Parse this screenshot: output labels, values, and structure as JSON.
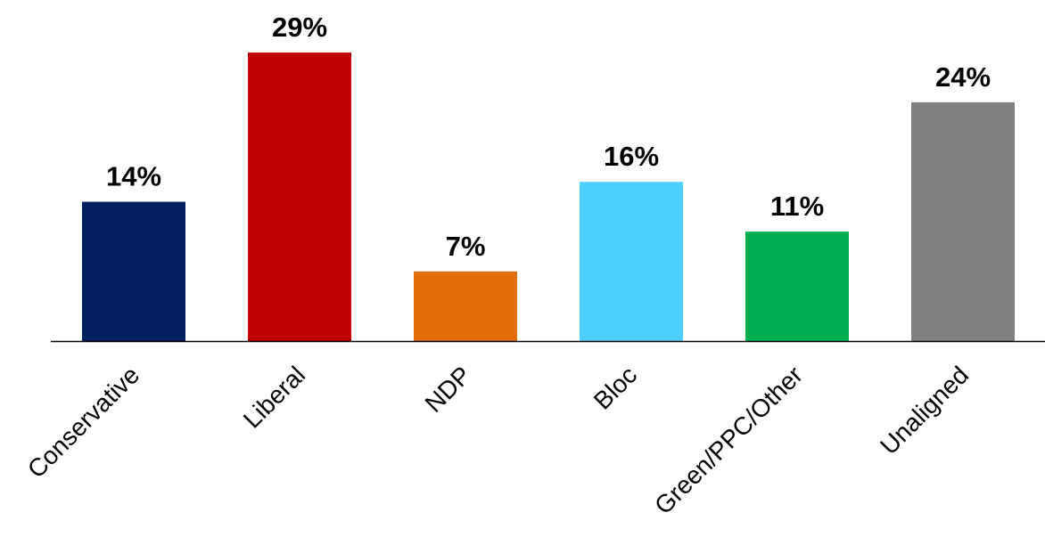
{
  "chart_data": {
    "type": "bar",
    "title": "",
    "xlabel": "",
    "ylabel": "",
    "ylim": [
      0,
      29
    ],
    "grid": false,
    "legend": "none",
    "categories": [
      "Conservative",
      "Liberal",
      "NDP",
      "Bloc",
      "Green/PPC/Other",
      "Unaligned"
    ],
    "values": [
      14,
      29,
      7,
      16,
      11,
      24
    ],
    "value_labels": [
      "14%",
      "29%",
      "7%",
      "16%",
      "11%",
      "24%"
    ],
    "colors": [
      "#002060",
      "#C00000",
      "#E36C0A",
      "#4DD0FF",
      "#00B050",
      "#808080"
    ],
    "axis_color": "#000000"
  }
}
